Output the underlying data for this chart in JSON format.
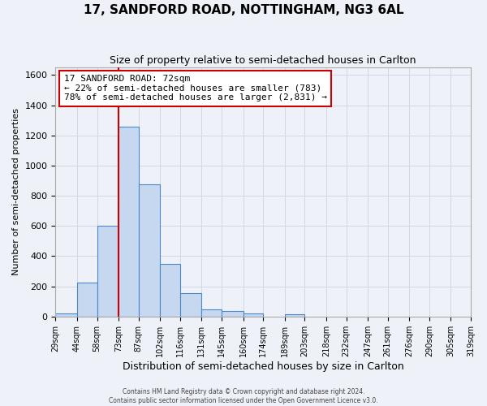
{
  "title": "17, SANDFORD ROAD, NOTTINGHAM, NG3 6AL",
  "subtitle": "Size of property relative to semi-detached houses in Carlton",
  "xlabel": "Distribution of semi-detached houses by size in Carlton",
  "ylabel": "Number of semi-detached properties",
  "bar_left_edges": [
    29,
    44,
    58,
    73,
    87,
    102,
    116,
    131,
    145,
    160,
    174,
    189,
    203,
    218,
    232,
    247,
    261,
    276,
    290,
    305
  ],
  "bar_widths": [
    15,
    14,
    15,
    14,
    15,
    14,
    15,
    14,
    15,
    14,
    15,
    14,
    15,
    14,
    15,
    14,
    15,
    14,
    15,
    14
  ],
  "bar_heights": [
    20,
    225,
    600,
    1255,
    875,
    350,
    155,
    50,
    35,
    20,
    0,
    15,
    0,
    0,
    0,
    0,
    0,
    0,
    0,
    0
  ],
  "bar_color": "#c5d8f0",
  "bar_edge_color": "#4a86c8",
  "vline_x": 73,
  "vline_color": "#cc0000",
  "annotation_title": "17 SANDFORD ROAD: 72sqm",
  "annotation_line1": "← 22% of semi-detached houses are smaller (783)",
  "annotation_line2": "78% of semi-detached houses are larger (2,831) →",
  "annotation_box_color": "#cc0000",
  "ylim": [
    0,
    1650
  ],
  "yticks": [
    0,
    200,
    400,
    600,
    800,
    1000,
    1200,
    1400,
    1600
  ],
  "xtick_labels": [
    "29sqm",
    "44sqm",
    "58sqm",
    "73sqm",
    "87sqm",
    "102sqm",
    "116sqm",
    "131sqm",
    "145sqm",
    "160sqm",
    "174sqm",
    "189sqm",
    "203sqm",
    "218sqm",
    "232sqm",
    "247sqm",
    "261sqm",
    "276sqm",
    "290sqm",
    "305sqm",
    "319sqm"
  ],
  "xtick_positions": [
    29,
    44,
    58,
    73,
    87,
    102,
    116,
    131,
    145,
    160,
    174,
    189,
    203,
    218,
    232,
    247,
    261,
    276,
    290,
    305,
    319
  ],
  "grid_color": "#d0d8e8",
  "background_color": "#eef2f8",
  "footer1": "Contains HM Land Registry data © Crown copyright and database right 2024.",
  "footer2": "Contains public sector information licensed under the Open Government Licence v3.0."
}
